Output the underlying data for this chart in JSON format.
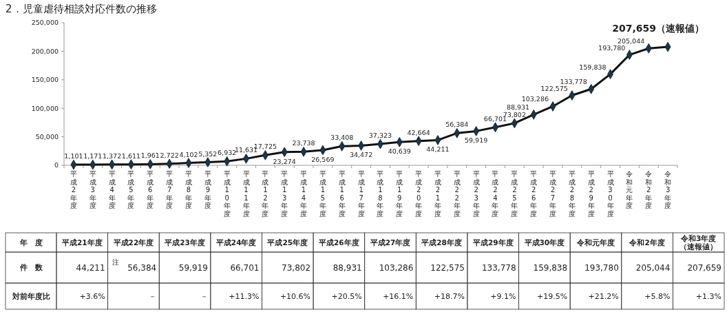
{
  "chart_data": [
    {
      "type": "line",
      "title": "2．児童虐待相談対応件数の推移",
      "categories": [
        "平成2年度",
        "平成3年度",
        "平成4年度",
        "平成5年度",
        "平成6年度",
        "平成7年度",
        "平成8年度",
        "平成9年度",
        "平成10年度",
        "平成11年度",
        "平成12年度",
        "平成13年度",
        "平成14年度",
        "平成15年度",
        "平成16年度",
        "平成17年度",
        "平成18年度",
        "平成19年度",
        "平成20年度",
        "平成21年度",
        "平成22年度",
        "平成23年度",
        "平成24年度",
        "平成25年度",
        "平成26年度",
        "平成27年度",
        "平成28年度",
        "平成29年度",
        "平成30年度",
        "令和元年度",
        "令和2年度",
        "令和3年度"
      ],
      "series": [
        {
          "color": "#111111",
          "values": [
            1101,
            1171,
            1372,
            1611,
            1961,
            2722,
            4102,
            5352,
            6932,
            11631,
            17725,
            23274,
            23738,
            26569,
            33408,
            34472,
            37323,
            40639,
            42664,
            44211,
            56384,
            59919,
            66701,
            73802,
            88931,
            103286,
            122575,
            133778,
            159838,
            193780,
            205044,
            207659
          ],
          "value_labels": [
            "1,101",
            "1,171",
            "1,372",
            "1,611",
            "1,961",
            "2,722",
            "4,102",
            "5,352",
            "6,932",
            "11,631",
            "17,725",
            "23,274",
            "23,738",
            "26,569",
            "33,408",
            "34,472",
            "37,323",
            "40,639",
            "42,664",
            "44,211",
            "56,384",
            "59,919",
            "66,701",
            "73,802",
            "88,931",
            "103,286",
            "122,575",
            "133,778",
            "159,838",
            "193,780",
            "205,044",
            "207,659（速報値）"
          ]
        }
      ],
      "ylim": [
        0,
        250000
      ],
      "yticks": [
        {
          "value": 0,
          "label": "0"
        },
        {
          "value": 50000,
          "label": "50,000"
        },
        {
          "value": 100000,
          "label": "100,000"
        },
        {
          "value": 150000,
          "label": "150,000"
        },
        {
          "value": 200000,
          "label": "200,000"
        },
        {
          "value": 250000,
          "label": "250,000"
        }
      ],
      "marker": "diamond",
      "line_style": "solid"
    },
    {
      "type": "other",
      "annotations": [
        "年　度",
        "平成21年度",
        "平成22年度",
        "平成23年度",
        "平成24年度",
        "平成25年度",
        "平成26年度",
        "平成27年度",
        "平成28年度",
        "平成29年度",
        "平成30年度",
        "令和元年度",
        "令和2年度",
        "令和3年度（速報値）",
        "件　数",
        "44,211",
        "$^{注}$56,384",
        "59,919",
        "66,701",
        "73,802",
        "88,931",
        "103,286",
        "122,575",
        "133,778",
        "159,838",
        "193,780",
        "205,044",
        "207,659",
        "対前年度比",
        "+3.6%",
        "－",
        "－",
        "+11.3%",
        "+10.6%",
        "+20.5%",
        "+16.1%",
        "+18.7%",
        "+9.1%",
        "+19.5%",
        "+21.2%",
        "+5.8%",
        "+1.3%"
      ]
    }
  ]
}
